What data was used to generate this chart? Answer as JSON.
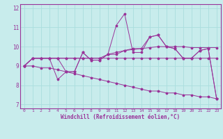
{
  "xlabel": "Windchill (Refroidissement éolien,°C)",
  "background_color": "#c8ecec",
  "grid_color": "#aadddd",
  "line_color": "#993399",
  "xlim": [
    -0.5,
    23.5
  ],
  "ylim": [
    6.8,
    12.2
  ],
  "xticks": [
    0,
    1,
    2,
    3,
    4,
    5,
    6,
    7,
    8,
    9,
    10,
    11,
    12,
    13,
    14,
    15,
    16,
    17,
    18,
    19,
    20,
    21,
    22,
    23
  ],
  "yticks": [
    7,
    8,
    9,
    10,
    11,
    12
  ],
  "x": [
    0,
    1,
    2,
    3,
    4,
    5,
    6,
    7,
    8,
    9,
    10,
    11,
    12,
    13,
    14,
    15,
    16,
    17,
    18,
    19,
    20,
    21,
    22,
    23
  ],
  "lines": [
    [
      9.0,
      9.4,
      9.4,
      9.4,
      8.3,
      8.7,
      8.7,
      9.7,
      9.3,
      9.3,
      9.6,
      11.1,
      11.7,
      9.7,
      9.7,
      10.5,
      10.6,
      10.0,
      9.9,
      9.4,
      9.4,
      9.8,
      9.9,
      7.3
    ],
    [
      9.0,
      9.4,
      9.4,
      9.4,
      9.4,
      9.4,
      9.4,
      9.4,
      9.4,
      9.4,
      9.4,
      9.4,
      9.4,
      9.4,
      9.4,
      9.4,
      9.4,
      9.4,
      9.4,
      9.4,
      9.4,
      9.4,
      9.4,
      9.4
    ],
    [
      9.0,
      9.4,
      9.4,
      9.4,
      9.4,
      9.4,
      9.4,
      9.4,
      9.4,
      9.4,
      9.6,
      9.7,
      9.8,
      9.85,
      9.9,
      9.95,
      10.0,
      10.0,
      10.0,
      10.0,
      9.95,
      9.95,
      9.95,
      9.95
    ],
    [
      9.0,
      9.4,
      9.4,
      9.4,
      9.4,
      8.7,
      8.7,
      9.7,
      9.3,
      9.3,
      9.6,
      9.6,
      9.8,
      9.9,
      9.9,
      10.5,
      10.6,
      10.0,
      9.9,
      9.4,
      9.4,
      9.8,
      9.9,
      7.3
    ],
    [
      9.0,
      9.0,
      8.9,
      8.9,
      8.8,
      8.7,
      8.6,
      8.5,
      8.4,
      8.3,
      8.2,
      8.1,
      8.0,
      7.9,
      7.8,
      7.7,
      7.7,
      7.6,
      7.6,
      7.5,
      7.5,
      7.4,
      7.4,
      7.3
    ]
  ]
}
